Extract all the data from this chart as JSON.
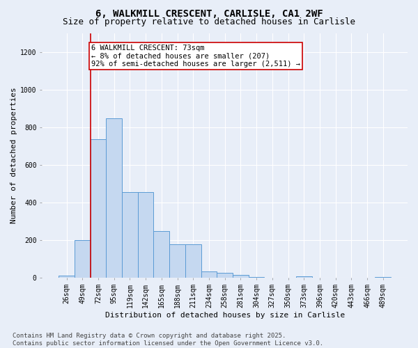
{
  "title_line1": "6, WALKMILL CRESCENT, CARLISLE, CA1 2WF",
  "title_line2": "Size of property relative to detached houses in Carlisle",
  "xlabel": "Distribution of detached houses by size in Carlisle",
  "ylabel": "Number of detached properties",
  "categories": [
    "26sqm",
    "49sqm",
    "72sqm",
    "95sqm",
    "119sqm",
    "142sqm",
    "165sqm",
    "188sqm",
    "211sqm",
    "234sqm",
    "258sqm",
    "281sqm",
    "304sqm",
    "327sqm",
    "350sqm",
    "373sqm",
    "396sqm",
    "420sqm",
    "443sqm",
    "466sqm",
    "489sqm"
  ],
  "values": [
    12,
    200,
    735,
    848,
    455,
    455,
    248,
    178,
    178,
    35,
    25,
    15,
    5,
    0,
    0,
    6,
    0,
    0,
    0,
    0,
    5
  ],
  "bar_color": "#c5d8f0",
  "bar_edge_color": "#5b9bd5",
  "background_color": "#e8eef8",
  "grid_color": "#ffffff",
  "vline_x": 1.5,
  "vline_color": "#cc0000",
  "annotation_text": "6 WALKMILL CRESCENT: 73sqm\n← 8% of detached houses are smaller (207)\n92% of semi-detached houses are larger (2,511) →",
  "annotation_box_color": "#ffffff",
  "annotation_box_edge_color": "#cc0000",
  "ylim": [
    0,
    1300
  ],
  "yticks": [
    0,
    200,
    400,
    600,
    800,
    1000,
    1200
  ],
  "footnote": "Contains HM Land Registry data © Crown copyright and database right 2025.\nContains public sector information licensed under the Open Government Licence v3.0.",
  "title_fontsize": 10,
  "subtitle_fontsize": 9,
  "axis_label_fontsize": 8,
  "tick_fontsize": 7,
  "annotation_fontsize": 7.5,
  "footnote_fontsize": 6.5
}
